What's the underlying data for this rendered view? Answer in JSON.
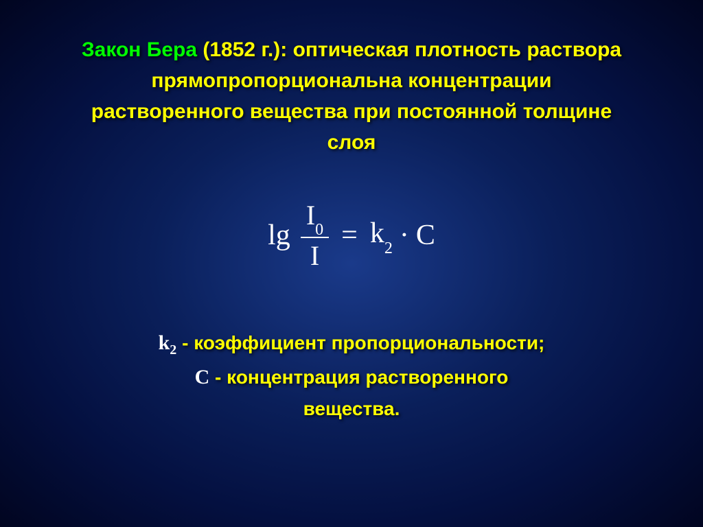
{
  "slide": {
    "title": {
      "highlight": "Закон Бера",
      "year": " (1852 г.): ",
      "body_line1": "оптическая  плотность раствора",
      "body_line2": "прямопропорциональна концентрации",
      "body_line3": "растворенного вещества при постоянной толщине",
      "body_line4": "слоя"
    },
    "formula": {
      "lg": "lg",
      "numerator": "I",
      "numerator_sub": "0",
      "denominator": "I",
      "equals": "=",
      "k": "k",
      "k_sub": "2",
      "dot": "·",
      "c": "C"
    },
    "definitions": {
      "k2_var": "k",
      "k2_sub": "2",
      "k2_sep": " - ",
      "k2_text": "коэффициент пропорциональности;",
      "c_var": "C",
      "c_sep": " - ",
      "c_text_line1": "концентрация растворенного",
      "c_text_line2": "вещества."
    },
    "styling": {
      "highlight_color": "#00ff00",
      "main_text_color": "#ffff00",
      "formula_color": "#ffffff",
      "title_fontsize": 30,
      "formula_fontsize": 42,
      "def_fontsize": 28,
      "background_gradient_inner": "#1a3a8a",
      "background_gradient_outer": "#010520"
    }
  }
}
